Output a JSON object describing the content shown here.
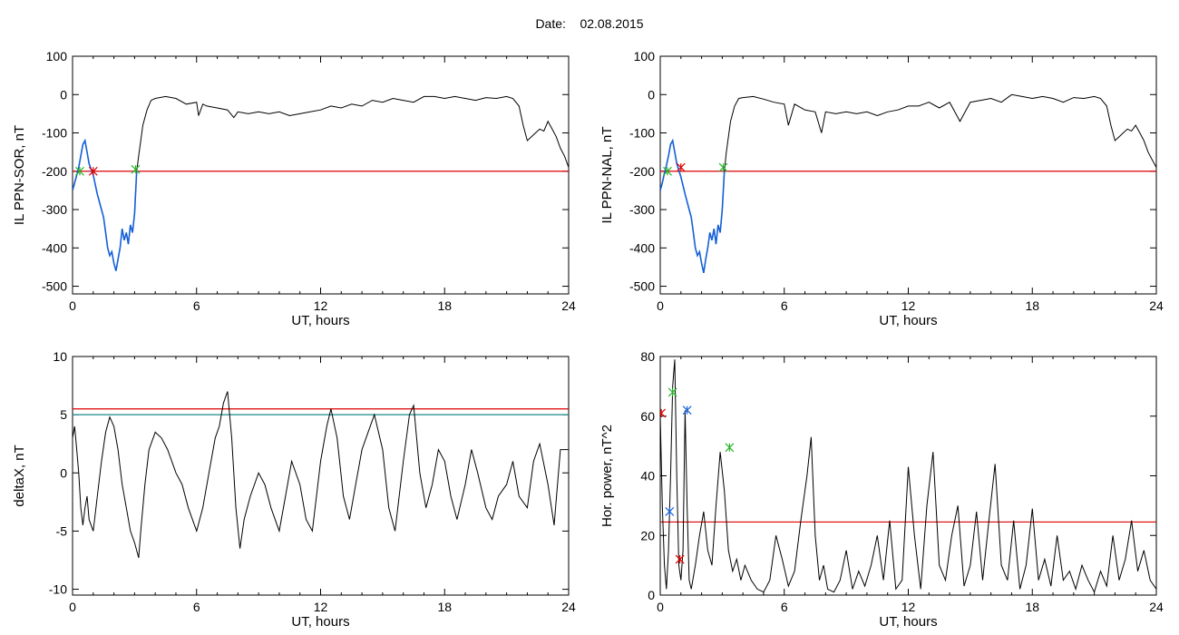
{
  "header": {
    "date_label": "Date:",
    "date_value": "02.08.2015"
  },
  "chart_data": [
    {
      "id": "top-left",
      "type": "line",
      "xlabel": "UT, hours",
      "ylabel": "IL PPN-SOR, nT",
      "xlim": [
        0,
        24
      ],
      "ylim": [
        -520,
        100
      ],
      "xticks": [
        0,
        6,
        12,
        18,
        24
      ],
      "yticks": [
        -500,
        -400,
        -300,
        -200,
        -100,
        0,
        100
      ],
      "threshold": {
        "value": -200,
        "color": "#dd0000"
      },
      "highlight": {
        "from": 0,
        "to": 3.1,
        "color": "#1560d8"
      },
      "series": [
        {
          "color": "#000000",
          "x": [
            0,
            0.1,
            0.2,
            0.3,
            0.4,
            0.5,
            0.6,
            0.7,
            0.8,
            1.0,
            1.2,
            1.4,
            1.5,
            1.6,
            1.7,
            1.8,
            1.9,
            2.0,
            2.1,
            2.2,
            2.3,
            2.4,
            2.5,
            2.6,
            2.7,
            2.8,
            2.9,
            3.0,
            3.1,
            3.2,
            3.4,
            3.6,
            3.8,
            4.0,
            4.5,
            5.0,
            5.5,
            6.0,
            6.1,
            6.3,
            6.5,
            7.0,
            7.5,
            7.8,
            8.0,
            8.5,
            9.0,
            9.5,
            10,
            10.5,
            11,
            11.5,
            12,
            12.5,
            13,
            13.5,
            14,
            14.5,
            15,
            15.5,
            16,
            16.5,
            17,
            17.5,
            18,
            18.5,
            19,
            19.5,
            20,
            20.5,
            21,
            21.3,
            21.6,
            21.8,
            22.0,
            22.2,
            22.4,
            22.6,
            22.8,
            23.0,
            23.2,
            23.4,
            23.6,
            23.8,
            24
          ],
          "y": [
            -250,
            -230,
            -210,
            -190,
            -160,
            -130,
            -120,
            -150,
            -180,
            -210,
            -260,
            -300,
            -320,
            -360,
            -400,
            -420,
            -410,
            -440,
            -460,
            -430,
            -400,
            -350,
            -380,
            -360,
            -390,
            -340,
            -360,
            -310,
            -200,
            -160,
            -80,
            -40,
            -15,
            -10,
            -5,
            -10,
            -25,
            -20,
            -55,
            -25,
            -30,
            -35,
            -40,
            -60,
            -45,
            -50,
            -45,
            -50,
            -45,
            -55,
            -50,
            -45,
            -40,
            -30,
            -35,
            -25,
            -30,
            -15,
            -20,
            -10,
            -15,
            -20,
            -5,
            -5,
            -10,
            -5,
            -10,
            -15,
            -8,
            -10,
            -5,
            -10,
            -30,
            -80,
            -120,
            -110,
            -100,
            -90,
            -95,
            -70,
            -90,
            -110,
            -140,
            -160,
            -190
          ]
        }
      ],
      "markers": [
        {
          "x": 0.35,
          "y": -200,
          "color": "#2ab52a"
        },
        {
          "x": 1.0,
          "y": -200,
          "color": "#dd0000"
        },
        {
          "x": 3.05,
          "y": -195,
          "color": "#2ab52a"
        }
      ]
    },
    {
      "id": "top-right",
      "type": "line",
      "xlabel": "UT, hours",
      "ylabel": "IL PPN-NAL, nT",
      "xlim": [
        0,
        24
      ],
      "ylim": [
        -520,
        100
      ],
      "xticks": [
        0,
        6,
        12,
        18,
        24
      ],
      "yticks": [
        -500,
        -400,
        -300,
        -200,
        -100,
        0,
        100
      ],
      "threshold": {
        "value": -200,
        "color": "#dd0000"
      },
      "highlight": {
        "from": 0,
        "to": 3.1,
        "color": "#1560d8"
      },
      "series": [
        {
          "color": "#000000",
          "x": [
            0,
            0.1,
            0.2,
            0.3,
            0.4,
            0.5,
            0.6,
            0.7,
            0.8,
            1.0,
            1.2,
            1.4,
            1.5,
            1.6,
            1.7,
            1.8,
            1.9,
            2.0,
            2.1,
            2.2,
            2.3,
            2.4,
            2.5,
            2.6,
            2.7,
            2.8,
            2.9,
            3.0,
            3.1,
            3.2,
            3.4,
            3.6,
            3.8,
            4.0,
            4.5,
            5.0,
            5.5,
            6.0,
            6.2,
            6.5,
            7.0,
            7.5,
            7.8,
            8.0,
            8.5,
            9.0,
            9.5,
            10,
            10.5,
            11,
            11.5,
            12,
            12.5,
            13,
            13.5,
            14,
            14.5,
            15,
            15.5,
            16,
            16.5,
            17,
            17.5,
            18,
            18.5,
            19,
            19.5,
            20,
            20.5,
            21,
            21.3,
            21.6,
            21.8,
            22.0,
            22.2,
            22.4,
            22.6,
            22.8,
            23.0,
            23.2,
            23.4,
            23.6,
            23.8,
            24
          ],
          "y": [
            -250,
            -230,
            -205,
            -185,
            -160,
            -130,
            -120,
            -150,
            -180,
            -215,
            -260,
            -300,
            -320,
            -360,
            -400,
            -420,
            -410,
            -440,
            -465,
            -430,
            -400,
            -360,
            -380,
            -350,
            -390,
            -340,
            -360,
            -300,
            -200,
            -150,
            -70,
            -30,
            -10,
            -8,
            -5,
            -12,
            -20,
            -25,
            -80,
            -25,
            -40,
            -45,
            -100,
            -45,
            -50,
            -45,
            -50,
            -45,
            -55,
            -45,
            -40,
            -30,
            -30,
            -20,
            -35,
            -20,
            -70,
            -20,
            -15,
            -10,
            -20,
            0,
            -5,
            -10,
            -5,
            -10,
            -20,
            -8,
            -10,
            -5,
            -10,
            -30,
            -80,
            -120,
            -110,
            -100,
            -90,
            -95,
            -80,
            -100,
            -120,
            -150,
            -170,
            -190
          ]
        }
      ],
      "markers": [
        {
          "x": 0.35,
          "y": -200,
          "color": "#2ab52a"
        },
        {
          "x": 1.0,
          "y": -190,
          "color": "#dd0000"
        },
        {
          "x": 3.05,
          "y": -190,
          "color": "#2ab52a"
        }
      ]
    },
    {
      "id": "bottom-left",
      "type": "line",
      "xlabel": "UT, hours",
      "ylabel": "deltaX, nT",
      "xlim": [
        0,
        24
      ],
      "ylim": [
        -10.5,
        10
      ],
      "xticks": [
        0,
        6,
        12,
        18,
        24
      ],
      "yticks": [
        -10,
        -5,
        0,
        5,
        10
      ],
      "hlines": [
        {
          "value": 5.5,
          "color": "#dd0000"
        },
        {
          "value": 5.0,
          "color": "#1a8a8a"
        }
      ],
      "series": [
        {
          "color": "#000000",
          "x": [
            0,
            0.1,
            0.2,
            0.3,
            0.4,
            0.5,
            0.6,
            0.7,
            0.8,
            1.0,
            1.2,
            1.4,
            1.6,
            1.8,
            2.0,
            2.2,
            2.4,
            2.6,
            2.8,
            3.0,
            3.2,
            3.3,
            3.5,
            3.7,
            4.0,
            4.3,
            4.6,
            5.0,
            5.3,
            5.6,
            6.0,
            6.3,
            6.6,
            6.9,
            7.1,
            7.3,
            7.5,
            7.7,
            7.9,
            8.1,
            8.3,
            8.6,
            9.0,
            9.3,
            9.6,
            10.0,
            10.3,
            10.6,
            11.0,
            11.3,
            11.6,
            12.0,
            12.3,
            12.5,
            12.8,
            13.1,
            13.4,
            13.7,
            14.0,
            14.3,
            14.6,
            15.0,
            15.3,
            15.6,
            16.0,
            16.3,
            16.5,
            16.8,
            17.1,
            17.4,
            17.7,
            18.0,
            18.3,
            18.6,
            19.0,
            19.3,
            19.6,
            20.0,
            20.3,
            20.6,
            21.0,
            21.3,
            21.6,
            22.0,
            22.3,
            22.6,
            23.0,
            23.3,
            23.6,
            24
          ],
          "y": [
            3,
            4,
            2,
            0,
            -3,
            -4.5,
            -3,
            -2,
            -4,
            -5,
            -2,
            1,
            3.5,
            4.8,
            4,
            2,
            -1,
            -3,
            -5,
            -6,
            -7.3,
            -5,
            -1,
            2,
            3.5,
            3,
            2,
            0,
            -1,
            -3,
            -5,
            -3,
            0,
            3,
            4,
            6,
            7,
            3,
            -3,
            -6.5,
            -4,
            -2,
            0,
            -1,
            -3,
            -5,
            -2,
            1,
            -1,
            -4,
            -5,
            1,
            4,
            5.5,
            3,
            -2,
            -4,
            -1,
            2,
            3.5,
            5,
            2,
            -3,
            -5,
            1,
            5,
            5.8,
            0,
            -3,
            -1,
            2,
            1,
            -2,
            -4,
            -1,
            2,
            0,
            -3,
            -4,
            -2,
            -1,
            1,
            -2,
            -3,
            1,
            2.5,
            -1,
            -4.5,
            2,
            2
          ]
        }
      ]
    },
    {
      "id": "bottom-right",
      "type": "line",
      "xlabel": "UT, hours",
      "ylabel": "Hor. power, nT^2",
      "xlim": [
        0,
        24
      ],
      "ylim": [
        0,
        80
      ],
      "xticks": [
        0,
        6,
        12,
        18,
        24
      ],
      "yticks": [
        0,
        20,
        40,
        60,
        80
      ],
      "hlines": [
        {
          "value": 24.5,
          "color": "#dd0000"
        }
      ],
      "series": [
        {
          "color": "#000000",
          "x": [
            0,
            0.1,
            0.2,
            0.3,
            0.4,
            0.5,
            0.6,
            0.7,
            0.8,
            0.9,
            1.0,
            1.1,
            1.2,
            1.3,
            1.4,
            1.5,
            1.7,
            1.9,
            2.1,
            2.3,
            2.5,
            2.7,
            2.9,
            3.1,
            3.3,
            3.5,
            3.7,
            3.9,
            4.1,
            4.4,
            4.7,
            5.0,
            5.3,
            5.6,
            5.9,
            6.2,
            6.5,
            6.8,
            7.1,
            7.3,
            7.5,
            7.7,
            7.9,
            8.1,
            8.4,
            8.7,
            9.0,
            9.3,
            9.6,
            9.9,
            10.2,
            10.5,
            10.8,
            11.1,
            11.4,
            11.7,
            12.0,
            12.3,
            12.6,
            12.9,
            13.2,
            13.5,
            13.8,
            14.1,
            14.4,
            14.7,
            15.0,
            15.3,
            15.6,
            15.9,
            16.2,
            16.5,
            16.8,
            17.1,
            17.4,
            17.7,
            18.0,
            18.3,
            18.6,
            18.9,
            19.2,
            19.5,
            19.8,
            20.1,
            20.4,
            20.7,
            21.0,
            21.3,
            21.6,
            21.9,
            22.2,
            22.5,
            22.8,
            23.1,
            23.4,
            23.7,
            24
          ],
          "y": [
            60,
            30,
            10,
            2,
            15,
            40,
            70,
            79,
            40,
            10,
            5,
            15,
            62,
            30,
            5,
            2,
            10,
            20,
            28,
            15,
            10,
            30,
            48,
            35,
            15,
            8,
            12,
            5,
            10,
            5,
            2,
            1,
            5,
            20,
            12,
            3,
            8,
            25,
            40,
            53,
            20,
            5,
            10,
            2,
            1,
            5,
            15,
            2,
            8,
            3,
            10,
            20,
            5,
            25,
            2,
            5,
            43,
            20,
            2,
            30,
            48,
            10,
            5,
            20,
            30,
            3,
            10,
            28,
            5,
            25,
            44,
            10,
            5,
            25,
            2,
            10,
            29,
            5,
            12,
            3,
            20,
            5,
            8,
            2,
            10,
            5,
            1,
            8,
            3,
            20,
            5,
            12,
            25,
            8,
            15,
            5,
            2
          ]
        }
      ],
      "markers": [
        {
          "x": 0.05,
          "y": 61,
          "color": "#dd0000"
        },
        {
          "x": 0.45,
          "y": 28,
          "color": "#1560d8"
        },
        {
          "x": 0.6,
          "y": 68,
          "color": "#2ab52a"
        },
        {
          "x": 0.95,
          "y": 12,
          "color": "#dd0000"
        },
        {
          "x": 1.3,
          "y": 62,
          "color": "#1560d8"
        },
        {
          "x": 3.35,
          "y": 49.5,
          "color": "#2ab52a"
        }
      ]
    }
  ]
}
